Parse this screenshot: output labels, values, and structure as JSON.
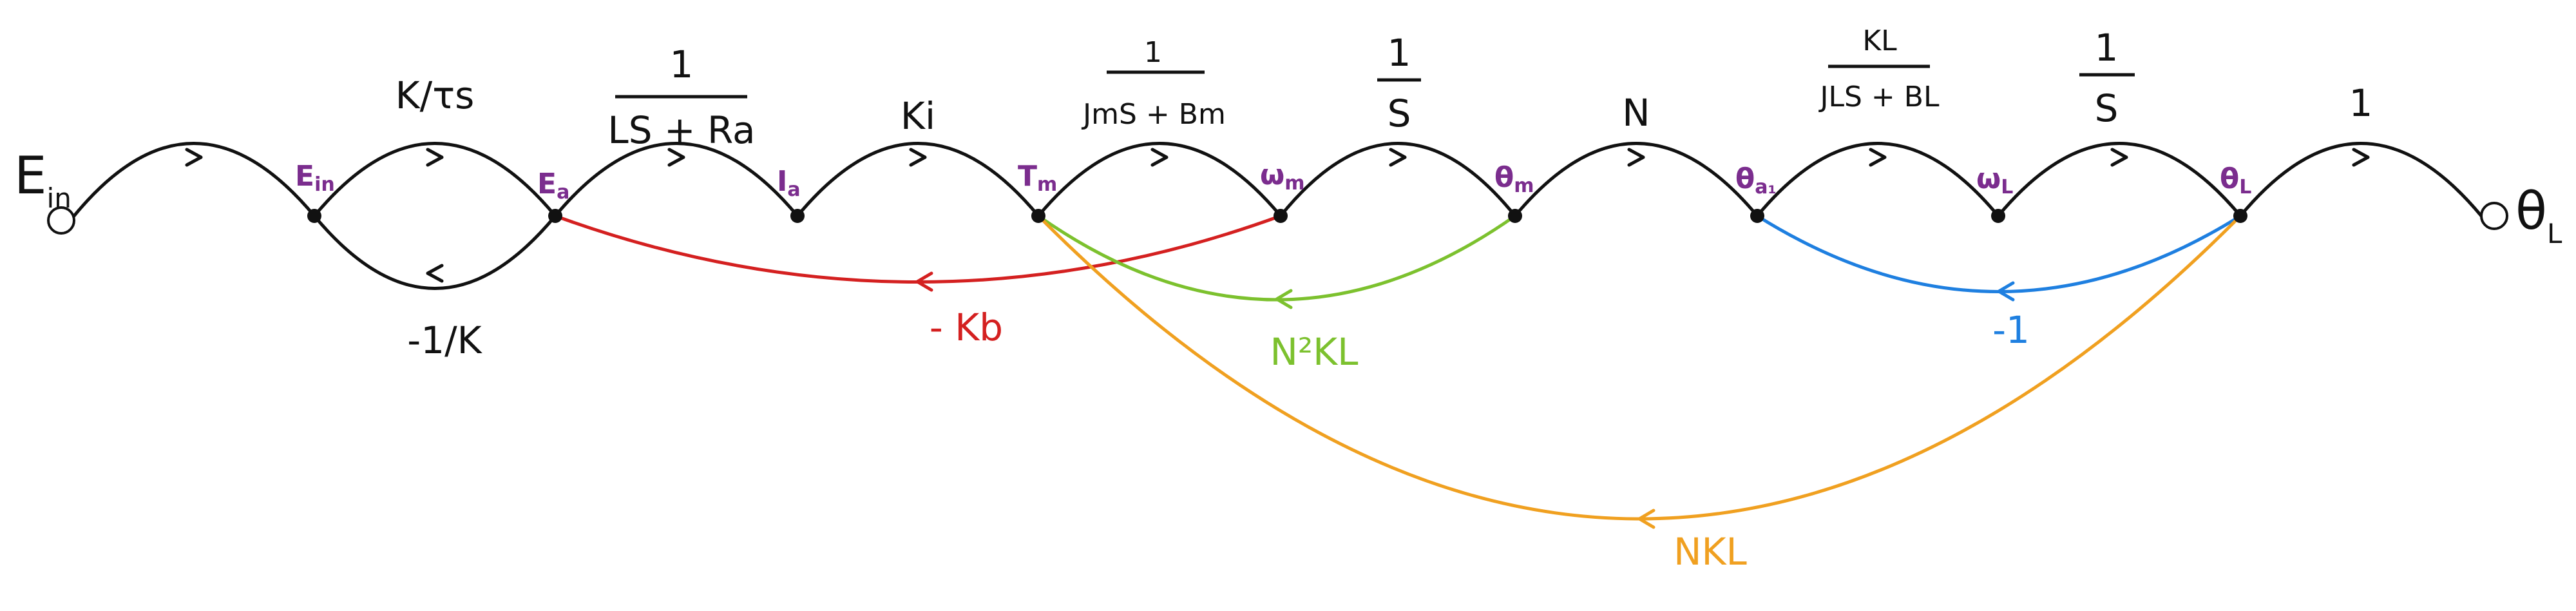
{
  "diagram": {
    "type": "signal-flow-graph",
    "colors": {
      "forward": "#111111",
      "node_label": "#7b2d8e",
      "back_emf": "#d42020",
      "load_coupling": "#7cc12e",
      "load_feedback": "#1e7fe0",
      "torque_feedback": "#f0a020"
    },
    "endpoints": {
      "input": {
        "letter": "E",
        "sub": "in"
      },
      "output": {
        "letter": "θ",
        "sub": "L"
      }
    },
    "nodes": [
      {
        "letter": "E",
        "sub": "in"
      },
      {
        "letter": "E",
        "sub": "a"
      },
      {
        "letter": "I",
        "sub": "a"
      },
      {
        "letter": "T",
        "sub": "m"
      },
      {
        "letter": "ω",
        "sub": "m"
      },
      {
        "letter": "θ",
        "sub": "m"
      },
      {
        "letter": "θ",
        "sub": "a₁"
      },
      {
        "letter": "ω",
        "sub": "L"
      },
      {
        "letter": "θ",
        "sub": "L"
      }
    ],
    "forward_gains": {
      "g0": "",
      "g1": "K/τs",
      "g2_num": "1",
      "g2_den": "LS + Ra",
      "g3": "Ki",
      "g4_num": "1",
      "g4_den": "JmS + Bm",
      "g5_num": "1",
      "g5_den": "S",
      "g6": "N",
      "g7_num": "KL",
      "g7_den": "JLS + BL",
      "g8_num": "1",
      "g8_den": "S",
      "g9": "1"
    },
    "feedback_gains": {
      "inner_loop": "-1/K",
      "back_emf": "- Kb",
      "load_coupling": "N²KL",
      "load_feedback": "-1",
      "torque_feedback": "NKL"
    }
  }
}
